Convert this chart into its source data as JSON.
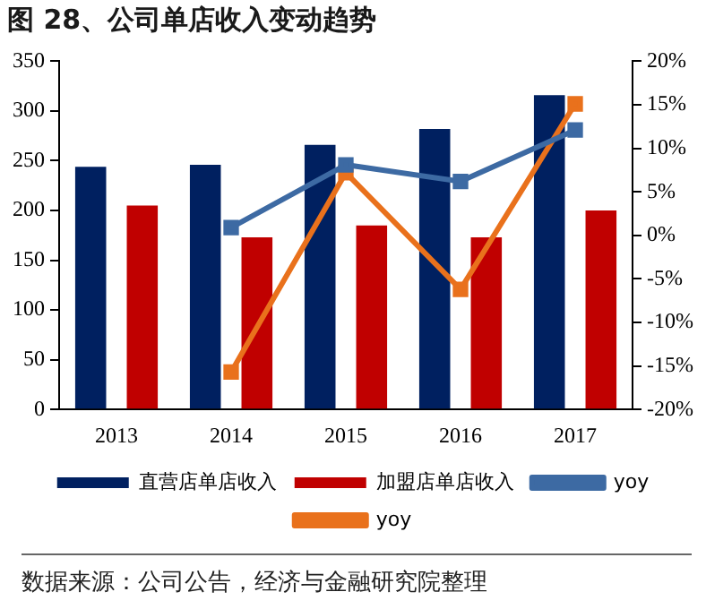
{
  "chart_data": {
    "type": "bar",
    "title": "图 28、公司单店收入变动趋势",
    "categories": [
      "2013",
      "2014",
      "2015",
      "2016",
      "2017"
    ],
    "series": [
      {
        "name": "直营店单店收入",
        "color": "#002060",
        "values": [
          244,
          246,
          266,
          282,
          316
        ]
      },
      {
        "name": "加盟店单店收入",
        "color": "#c00000",
        "values": [
          205,
          173,
          185,
          173,
          200
        ]
      },
      {
        "name": "yoy",
        "type": "line",
        "axis": "y2",
        "color": "#3d6aa3",
        "values": [
          null,
          0.9,
          8.1,
          6.2,
          12.1
        ]
      },
      {
        "name": "yoy",
        "type": "line",
        "axis": "y2",
        "color": "#e9711c",
        "values": [
          null,
          -15.7,
          7.2,
          -6.2,
          15.1
        ]
      }
    ],
    "ylim": [
      0,
      350
    ],
    "yticks": [
      0,
      50,
      100,
      150,
      200,
      250,
      300,
      350
    ],
    "y2lim": [
      -20,
      20
    ],
    "y2ticks": [
      {
        "value": -20,
        "label": "-20%"
      },
      {
        "value": -15,
        "label": "-15%"
      },
      {
        "value": -10,
        "label": "-10%"
      },
      {
        "value": -5,
        "label": "-5%"
      },
      {
        "value": 0,
        "label": "0%"
      },
      {
        "value": 5,
        "label": "5%"
      },
      {
        "value": 10,
        "label": "10%"
      },
      {
        "value": 15,
        "label": "15%"
      },
      {
        "value": 20,
        "label": "20%"
      }
    ],
    "grid": false,
    "legend": "bottom",
    "marker": "square",
    "annotations": [
      "数据来源：公司公告，经济与金融研究院整理"
    ]
  }
}
